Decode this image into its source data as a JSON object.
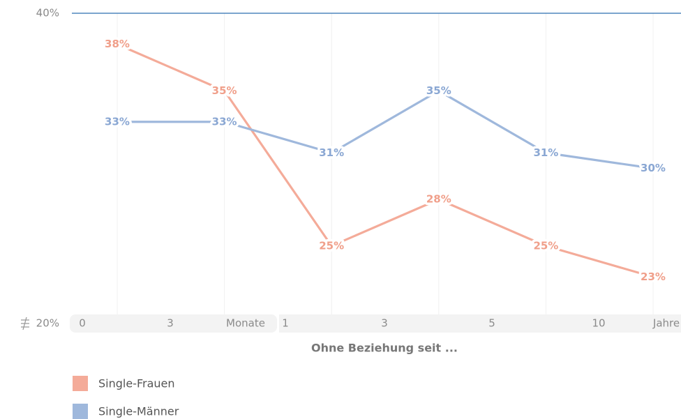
{
  "chart_data": {
    "type": "line",
    "x_label": "Ohne Beziehung seit ...",
    "categories": [
      null,
      null,
      null,
      null,
      null,
      null
    ],
    "axis_labels": [
      "0",
      "3",
      "Monate",
      "1",
      "3",
      "5",
      "10",
      "Jahre"
    ],
    "series": [
      {
        "name": "Single-Frauen",
        "color": "#f4ab99",
        "label_color": "#f09f8a",
        "values": [
          38,
          35,
          25,
          28,
          25,
          23
        ],
        "value_labels": [
          "38%",
          "35%",
          "25%",
          "28%",
          "25%",
          "23%"
        ]
      },
      {
        "name": "Single-Männer",
        "color": "#9fb8dc",
        "label_color": "#8aa7d3",
        "values": [
          33,
          33,
          31,
          35,
          31,
          30
        ],
        "value_labels": [
          "33%",
          "33%",
          "31%",
          "35%",
          "31%",
          "30%"
        ]
      }
    ],
    "ylim": [
      20,
      40
    ],
    "yticks": [
      {
        "value": 20,
        "label": "20%"
      },
      {
        "value": 40,
        "label": "40%"
      }
    ],
    "grid": true
  }
}
